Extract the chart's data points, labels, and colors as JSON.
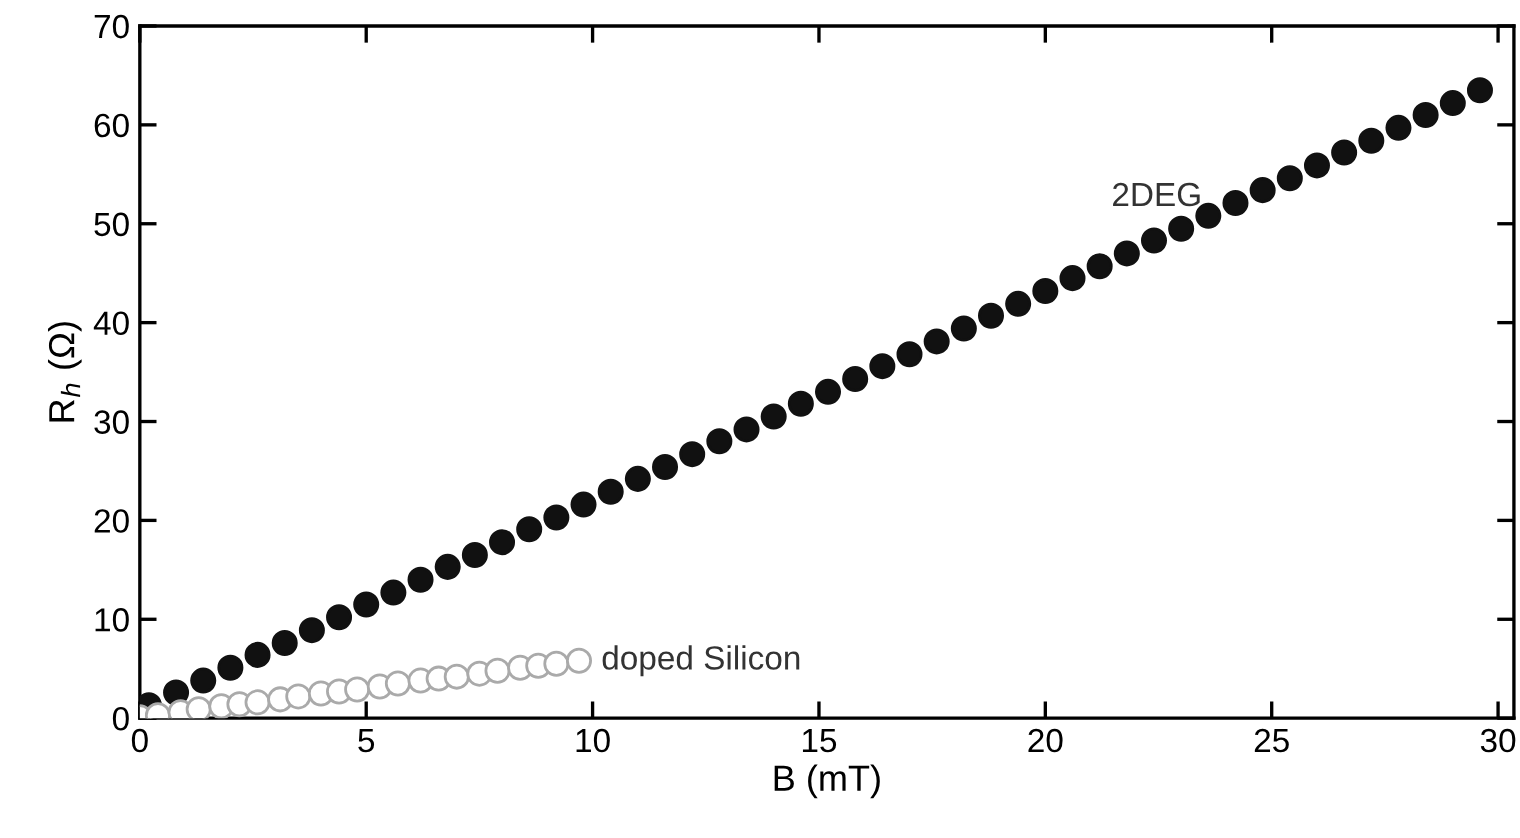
{
  "chart_data": {
    "type": "scatter",
    "xlabel": "B (mT)",
    "ylabel": "R$_{h}$ (Ω)",
    "xlim": [
      0,
      30.35
    ],
    "ylim": [
      0,
      70
    ],
    "xticks": [
      0,
      5,
      10,
      15,
      20,
      25,
      30
    ],
    "yticks": [
      0,
      10,
      20,
      30,
      40,
      50,
      60,
      70
    ],
    "grid": false,
    "legend": false,
    "series": [
      {
        "name": "2DEG",
        "color": "#111111",
        "marker": "circle",
        "x": [
          0.2,
          0.8,
          1.4,
          2.0,
          2.6,
          3.2,
          3.8,
          4.4,
          5.0,
          5.6,
          6.2,
          6.8,
          7.4,
          8.0,
          8.6,
          9.2,
          9.8,
          10.4,
          11.0,
          11.6,
          12.2,
          12.8,
          13.4,
          14.0,
          14.6,
          15.2,
          15.8,
          16.4,
          17.0,
          17.6,
          18.2,
          18.8,
          19.4,
          20.0,
          20.6,
          21.2,
          21.8,
          22.4,
          23.0,
          23.6,
          24.2,
          24.8,
          25.4,
          26.0,
          26.6,
          27.2,
          27.8,
          28.4,
          29.0,
          29.6
        ],
        "values": [
          1.3,
          2.6,
          3.8,
          5.1,
          6.4,
          7.6,
          8.9,
          10.2,
          11.5,
          12.7,
          14.0,
          15.3,
          16.5,
          17.8,
          19.1,
          20.3,
          21.6,
          22.9,
          24.2,
          25.4,
          26.7,
          28.0,
          29.2,
          30.5,
          31.8,
          33.0,
          34.3,
          35.6,
          36.8,
          38.1,
          39.4,
          40.7,
          41.9,
          43.2,
          44.5,
          45.7,
          47.0,
          48.3,
          49.5,
          50.8,
          52.1,
          53.4,
          54.6,
          55.9,
          57.2,
          58.4,
          59.7,
          61.0,
          62.2,
          63.5
        ]
      },
      {
        "name": "doped Silicon",
        "color": "#aaaaaa",
        "marker": "open circle",
        "x": [
          0,
          0.4,
          0.9,
          1.3,
          1.8,
          2.2,
          2.6,
          3.1,
          3.5,
          4.0,
          4.4,
          4.8,
          5.3,
          5.7,
          6.2,
          6.6,
          7.0,
          7.5,
          7.9,
          8.4,
          8.8,
          9.2,
          9.7
        ],
        "values": [
          0.1,
          0.3,
          0.6,
          0.9,
          1.2,
          1.4,
          1.6,
          1.9,
          2.2,
          2.5,
          2.7,
          2.9,
          3.2,
          3.5,
          3.8,
          4.0,
          4.2,
          4.5,
          4.8,
          5.1,
          5.3,
          5.5,
          5.8
        ]
      }
    ]
  }
}
